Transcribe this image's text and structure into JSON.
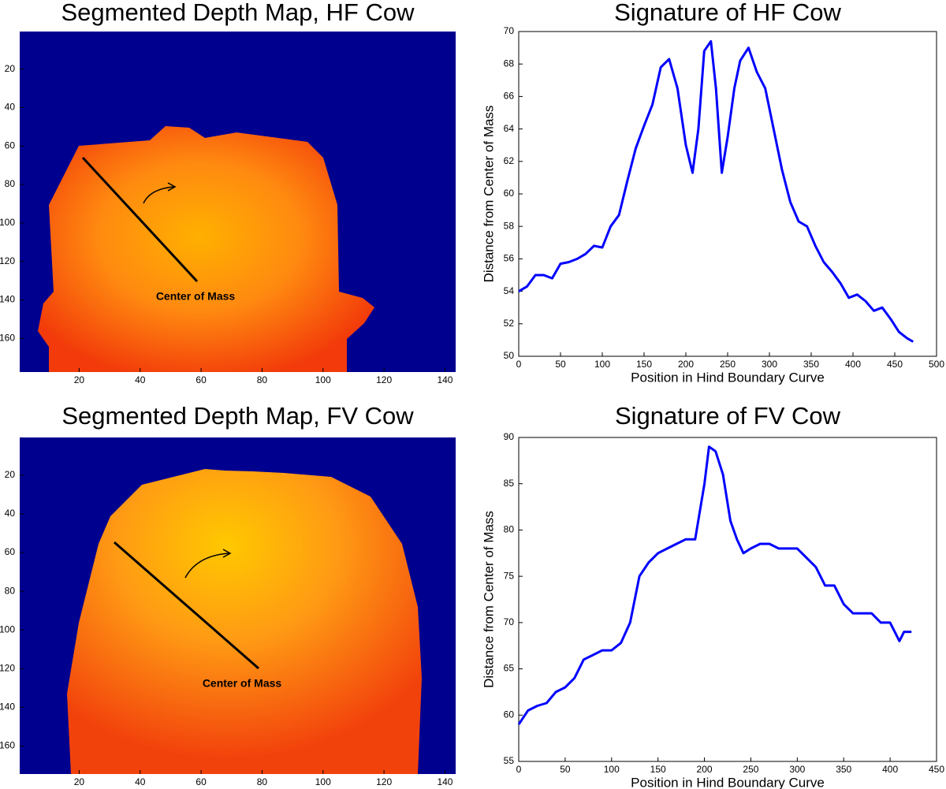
{
  "chart_data": [
    {
      "type": "image",
      "title": "Segmented Depth Map, HF Cow",
      "annotation": "Center of Mass",
      "xlim": [
        0.5,
        143.5
      ],
      "ylim": [
        0.5,
        177.5
      ],
      "xticks": [
        20,
        40,
        60,
        80,
        100,
        120,
        140
      ],
      "yticks": [
        20,
        40,
        60,
        80,
        100,
        120,
        140,
        160
      ]
    },
    {
      "type": "line",
      "title": "Signature of HF Cow",
      "xlabel": "Position in Hind Boundary Curve",
      "ylabel": "Distance from Center of Mass",
      "xlim": [
        0,
        500
      ],
      "ylim": [
        50,
        70
      ],
      "xticks": [
        0,
        50,
        100,
        150,
        200,
        250,
        300,
        350,
        400,
        450,
        500
      ],
      "yticks": [
        50,
        52,
        54,
        56,
        58,
        60,
        62,
        64,
        66,
        68,
        70
      ],
      "x": [
        0,
        10,
        20,
        30,
        40,
        50,
        60,
        70,
        80,
        90,
        100,
        110,
        120,
        130,
        140,
        150,
        160,
        170,
        180,
        190,
        200,
        208,
        215,
        222,
        230,
        236,
        243,
        250,
        258,
        265,
        275,
        285,
        295,
        305,
        315,
        325,
        335,
        345,
        355,
        365,
        375,
        385,
        395,
        405,
        415,
        425,
        435,
        445,
        455,
        465,
        472
      ],
      "series": [
        {
          "name": "HF",
          "color": "#0000ff",
          "values": [
            54,
            54.3,
            55,
            55,
            54.8,
            55.7,
            55.8,
            56,
            56.3,
            56.8,
            56.7,
            58,
            58.7,
            60.8,
            62.8,
            64.2,
            65.5,
            67.8,
            68.3,
            66.5,
            63,
            61.3,
            64,
            68.8,
            69.4,
            66.5,
            61.3,
            63.5,
            66.5,
            68.2,
            69,
            67.5,
            66.5,
            64,
            61.5,
            59.5,
            58.3,
            58,
            56.8,
            55.8,
            55.2,
            54.5,
            53.6,
            53.8,
            53.4,
            52.8,
            53,
            52.3,
            51.5,
            51.1,
            50.9
          ]
        }
      ]
    },
    {
      "type": "image",
      "title": "Segmented Depth Map, FV Cow",
      "annotation": "Center of Mass",
      "xlim": [
        0.5,
        143.5
      ],
      "ylim": [
        0.5,
        174.5
      ],
      "xticks": [
        20,
        40,
        60,
        80,
        100,
        120,
        140
      ],
      "yticks": [
        20,
        40,
        60,
        80,
        100,
        120,
        140,
        160
      ]
    },
    {
      "type": "line",
      "title": "Signature of FV Cow",
      "xlabel": "Position in Hind Boundary Curve",
      "ylabel": "Distance from Center of Mass",
      "xlim": [
        0,
        450
      ],
      "ylim": [
        55,
        90
      ],
      "xticks": [
        0,
        50,
        100,
        150,
        200,
        250,
        300,
        350,
        400,
        450
      ],
      "yticks": [
        55,
        60,
        65,
        70,
        75,
        80,
        85,
        90
      ],
      "x": [
        0,
        10,
        20,
        30,
        40,
        50,
        60,
        70,
        80,
        90,
        100,
        110,
        120,
        130,
        140,
        150,
        160,
        170,
        180,
        190,
        200,
        205,
        212,
        220,
        228,
        235,
        242,
        250,
        260,
        270,
        280,
        290,
        300,
        310,
        320,
        330,
        340,
        350,
        360,
        370,
        380,
        390,
        400,
        410,
        415,
        423
      ],
      "series": [
        {
          "name": "FV",
          "color": "#0000ff",
          "values": [
            59,
            60.5,
            61,
            61.3,
            62.5,
            63,
            64,
            66,
            66.5,
            67,
            67,
            67.8,
            70,
            75,
            76.5,
            77.5,
            78,
            78.5,
            79,
            79,
            85,
            89,
            88.5,
            86,
            81,
            79,
            77.5,
            78,
            78.5,
            78.5,
            78,
            78,
            78,
            77,
            76,
            74,
            74,
            72,
            71,
            71,
            71,
            70,
            70,
            68,
            69,
            69
          ]
        }
      ]
    }
  ]
}
